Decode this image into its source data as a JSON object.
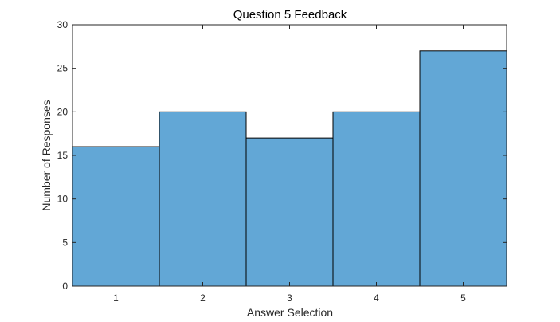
{
  "chart_data": {
    "type": "bar",
    "title": "Question 5 Feedback",
    "xlabel": "Answer Selection",
    "ylabel": "Number of Responses",
    "categories": [
      "1",
      "2",
      "3",
      "4",
      "5"
    ],
    "values": [
      16,
      20,
      17,
      20,
      27
    ],
    "xlim": [
      0.5,
      5.5
    ],
    "ylim": [
      0,
      30
    ],
    "yticks": [
      0,
      5,
      10,
      15,
      20,
      25,
      30
    ],
    "xticks": [
      "1",
      "2",
      "3",
      "4",
      "5"
    ],
    "grid": false,
    "legend": "none",
    "bar_color": "#62a7d6",
    "edge_color": "#000000",
    "axis_color": "#262626"
  }
}
